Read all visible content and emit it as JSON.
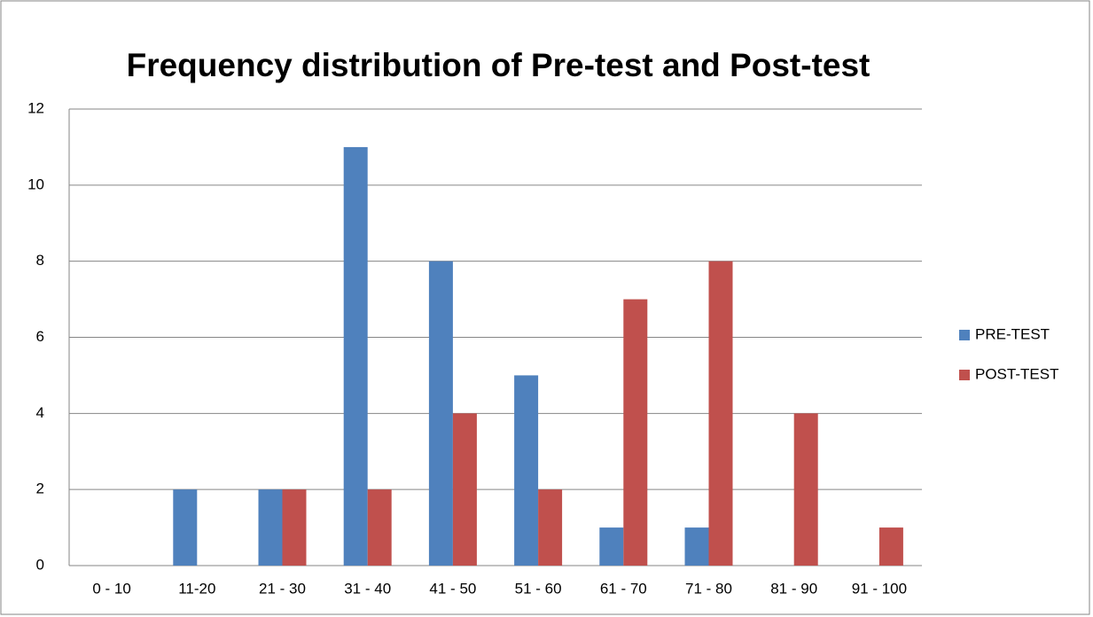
{
  "chart_data": {
    "type": "bar",
    "title": "Frequency distribution of Pre-test and Post-test",
    "categories": [
      "0 - 10",
      "11-20",
      "21 - 30",
      "31 - 40",
      "41 - 50",
      "51 - 60",
      "61 - 70",
      "71 - 80",
      "81 - 90",
      "91 - 100"
    ],
    "series": [
      {
        "name": "PRE-TEST",
        "color": "#4f81bd",
        "values": [
          0,
          2,
          2,
          11,
          8,
          5,
          1,
          1,
          0,
          0
        ]
      },
      {
        "name": "POST-TEST",
        "color": "#c0504d",
        "values": [
          0,
          0,
          2,
          2,
          4,
          2,
          7,
          8,
          4,
          1
        ]
      }
    ],
    "ylim": [
      0,
      12
    ],
    "yticks": [
      0,
      2,
      4,
      6,
      8,
      10,
      12
    ],
    "grid": true,
    "legend": "right"
  }
}
